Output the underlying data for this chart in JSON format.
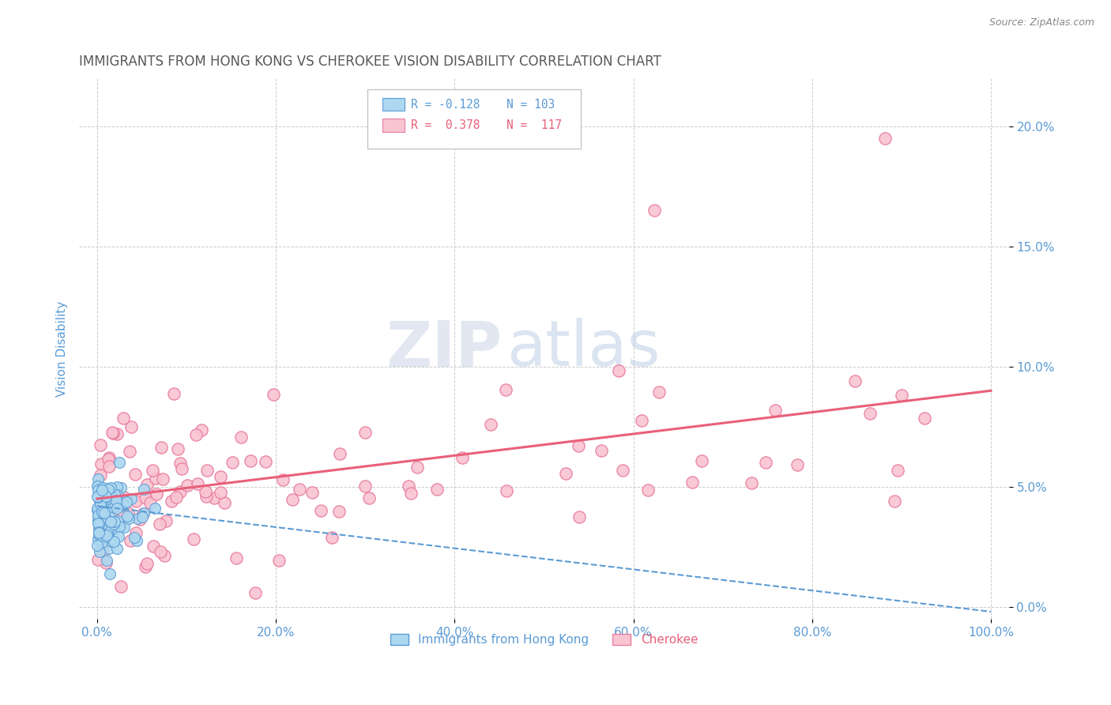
{
  "title": "IMMIGRANTS FROM HONG KONG VS CHEROKEE VISION DISABILITY CORRELATION CHART",
  "source": "Source: ZipAtlas.com",
  "ylabel": "Vision Disability",
  "xlim": [
    -2,
    102
  ],
  "ylim": [
    -0.5,
    22
  ],
  "yticks": [
    0,
    5,
    10,
    15,
    20
  ],
  "ytick_labels": [
    "0.0%",
    "5.0%",
    "10.0%",
    "15.0%",
    "20.0%"
  ],
  "xticks": [
    0,
    20,
    40,
    60,
    80,
    100
  ],
  "xtick_labels": [
    "0.0%",
    "20.0%",
    "40.0%",
    "60.0%",
    "80.0%",
    "100.0%"
  ],
  "blue_R": -0.128,
  "blue_N": 103,
  "pink_R": 0.378,
  "pink_N": 117,
  "blue_color": "#add8f0",
  "pink_color": "#f9c4d2",
  "blue_edge_color": "#5b9bd5",
  "pink_edge_color": "#e87ea1",
  "blue_line_color": "#5b9bd5",
  "pink_line_color": "#e8607a",
  "legend_R_blue": "R = -0.128",
  "legend_N_blue": "N = 103",
  "legend_R_pink": "R =  0.378",
  "legend_N_pink": "N =  117",
  "label_blue": "Immigrants from Hong Kong",
  "label_pink": "Cherokee",
  "watermark_zip": "ZIP",
  "watermark_atlas": "atlas",
  "background_color": "#ffffff",
  "grid_color": "#cccccc",
  "title_color": "#595959",
  "axis_label_color": "#5b9bd5",
  "tick_label_color": "#5b9bd5"
}
